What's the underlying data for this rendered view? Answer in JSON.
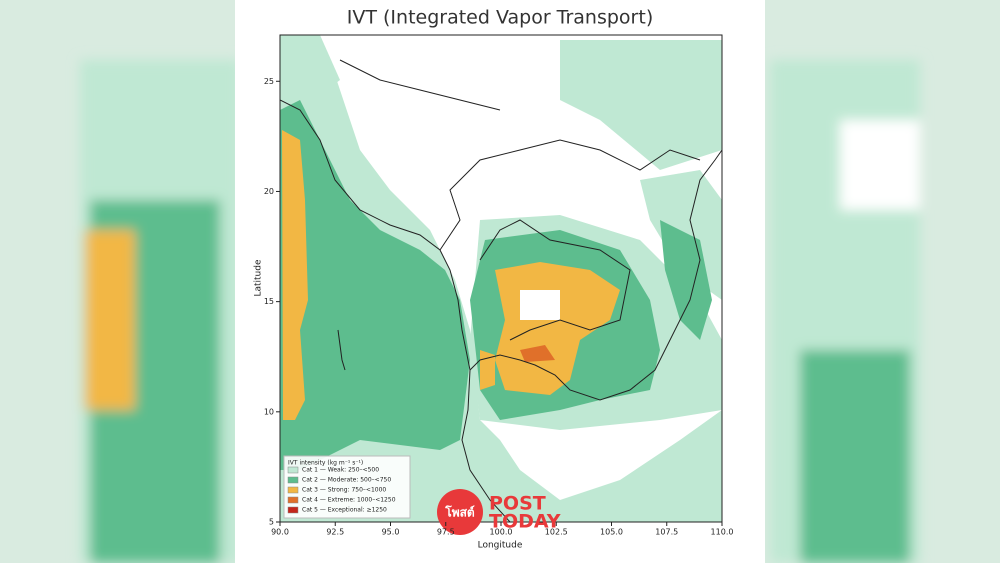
{
  "title": "IVT (Integrated Vapor Transport)",
  "xlabel": "Longitude",
  "ylabel": "Latitude",
  "xlim": [
    90,
    110
  ],
  "ylim": [
    5,
    27.1
  ],
  "xticks": [
    {
      "value": 90,
      "label": "90.0"
    },
    {
      "value": 92.5,
      "label": "92.5"
    },
    {
      "value": 95,
      "label": "95.0"
    },
    {
      "value": 97.5,
      "label": "97.5"
    },
    {
      "value": 100,
      "label": "100.0"
    },
    {
      "value": 102.5,
      "label": "102.5"
    },
    {
      "value": 105,
      "label": "105.0"
    },
    {
      "value": 107.5,
      "label": "107.5"
    },
    {
      "value": 110,
      "label": "110.0"
    }
  ],
  "yticks": [
    5,
    10,
    15,
    20,
    25
  ],
  "legend": {
    "title": "IVT intensity (kg m⁻¹ s⁻¹)",
    "items": [
      {
        "label": "Cat 1 — Weak: 250–<500",
        "color": "#bfe8d3"
      },
      {
        "label": "Cat 2 — Moderate: 500–<750",
        "color": "#5dbd8e"
      },
      {
        "label": "Cat 3 — Strong: 750–<1000",
        "color": "#f2b744"
      },
      {
        "label": "Cat 4 — Extreme: 1000–<1250",
        "color": "#e0702a"
      },
      {
        "label": "Cat 5 — Exceptional: ≥1250",
        "color": "#c4261b"
      }
    ]
  },
  "logo": {
    "mark": "โพสต์",
    "line1": "POST",
    "line2": "TODAY"
  }
}
